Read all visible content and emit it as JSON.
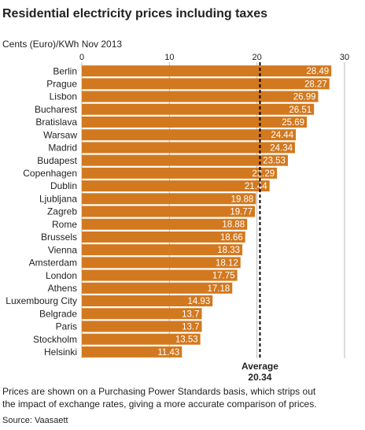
{
  "chart_data": {
    "type": "bar",
    "orientation": "horizontal",
    "title": "Residential electricity prices including taxes",
    "subtitle": "Cents (Euro)/KWh Nov 2013",
    "categories": [
      "Berlin",
      "Prague",
      "Lisbon",
      "Bucharest",
      "Bratislava",
      "Warsaw",
      "Madrid",
      "Budapest",
      "Copenhagen",
      "Dublin",
      "Ljubljana",
      "Zagreb",
      "Rome",
      "Brussels",
      "Vienna",
      "Amsterdam",
      "London",
      "Athens",
      "Luxembourg City",
      "Belgrade",
      "Paris",
      "Stockholm",
      "Helsinki"
    ],
    "values": [
      28.49,
      28.27,
      26.99,
      26.51,
      25.69,
      24.44,
      24.34,
      23.53,
      22.29,
      21.44,
      19.88,
      19.77,
      18.88,
      18.66,
      18.33,
      18.12,
      17.75,
      17.18,
      14.93,
      13.7,
      13.7,
      13.53,
      11.43
    ],
    "color": "#d2791f",
    "xlim": [
      0,
      30
    ],
    "xticks": [
      0,
      10,
      20,
      30
    ],
    "grid": true,
    "average": {
      "label": "Average",
      "value": 20.34
    },
    "notes": [
      "Prices are shown on a Purchasing Power Standards basis, which strips out",
      "the impact of exchange rates, giving a more accurate comparison of prices."
    ],
    "source": "Source: Vaasaett"
  }
}
